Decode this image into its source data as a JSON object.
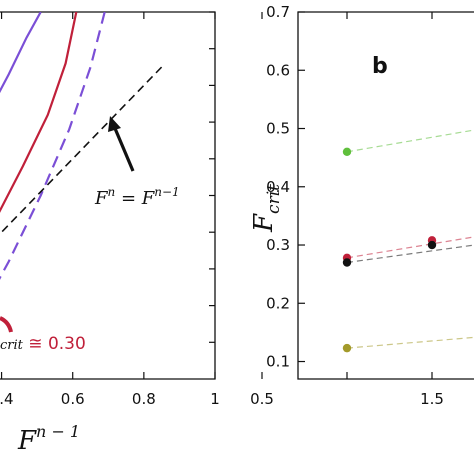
{
  "chart_data": [
    {
      "type": "line",
      "panel": "a (cropped)",
      "xlabel": "F^(n−1)",
      "xlabel_base": "F",
      "xlabel_sup": "n − 1",
      "xticks": [
        "0.4",
        "0.6",
        "0.8",
        "1"
      ],
      "xtick_values": [
        0.4,
        0.6,
        0.8,
        1.0
      ],
      "xlim": [
        0.3,
        1.0
      ],
      "ylim": [
        0.0,
        1.0
      ],
      "series": [
        {
          "color": "#7b4fd6",
          "style": "solid",
          "x": [
            0.3,
            0.36,
            0.42,
            0.47,
            0.51
          ],
          "y": [
            0.62,
            0.72,
            0.83,
            0.93,
            1.0
          ]
        },
        {
          "color": "#c0203a",
          "style": "solid",
          "x": [
            0.3,
            0.38,
            0.46,
            0.53,
            0.58,
            0.61
          ],
          "y": [
            0.3,
            0.43,
            0.58,
            0.72,
            0.86,
            1.0
          ]
        },
        {
          "color": "#7b4fd6",
          "style": "dashed",
          "x": [
            0.33,
            0.42,
            0.51,
            0.59,
            0.65,
            0.69
          ],
          "y": [
            0.16,
            0.32,
            0.5,
            0.68,
            0.85,
            1.0
          ]
        },
        {
          "color": "#111111",
          "style": "dashed",
          "x": [
            0.3,
            0.85
          ],
          "y": [
            0.3,
            0.85
          ]
        }
      ],
      "annotations": [
        {
          "text_base": "F",
          "text_sup_left": "n",
          "text_eq": " = ",
          "text_base2": "F",
          "text_sup_right": "n−1"
        },
        {
          "text_prefix": "F",
          "text_sub": "crit",
          "text_value": " ≅ 0.30",
          "color": "#c0203a"
        }
      ]
    },
    {
      "type": "scatter",
      "panel_letter": "b",
      "ylabel_base": "F",
      "ylabel_sub": "crit",
      "xticks": [
        "0.5",
        "1.5"
      ],
      "xtick_values": [
        0.5,
        1.5
      ],
      "xlim": [
        0.5,
        2.5
      ],
      "yticks": [
        "0.1",
        "0.2",
        "0.3",
        "0.4",
        "0.5",
        "0.6",
        "0.7"
      ],
      "ytick_values": [
        0.1,
        0.2,
        0.3,
        0.4,
        0.5,
        0.6,
        0.7
      ],
      "ylim": [
        0.07,
        0.7
      ],
      "series": [
        {
          "color": "#5fbf3c",
          "x": [
            1.0
          ],
          "y": [
            0.46
          ],
          "fit_to": [
            2.5,
            0.535
          ]
        },
        {
          "color": "#c0203a",
          "x": [
            1.0,
            1.5
          ],
          "y": [
            0.278,
            0.308
          ],
          "fit_to": [
            2.5,
            0.35
          ]
        },
        {
          "color": "#111111",
          "x": [
            1.0,
            1.5
          ],
          "y": [
            0.27,
            0.3
          ],
          "fit_to": [
            2.5,
            0.33
          ]
        },
        {
          "color": "#a39a2a",
          "x": [
            1.0
          ],
          "y": [
            0.123
          ],
          "fit_to": [
            2.5,
            0.16
          ]
        }
      ]
    }
  ]
}
